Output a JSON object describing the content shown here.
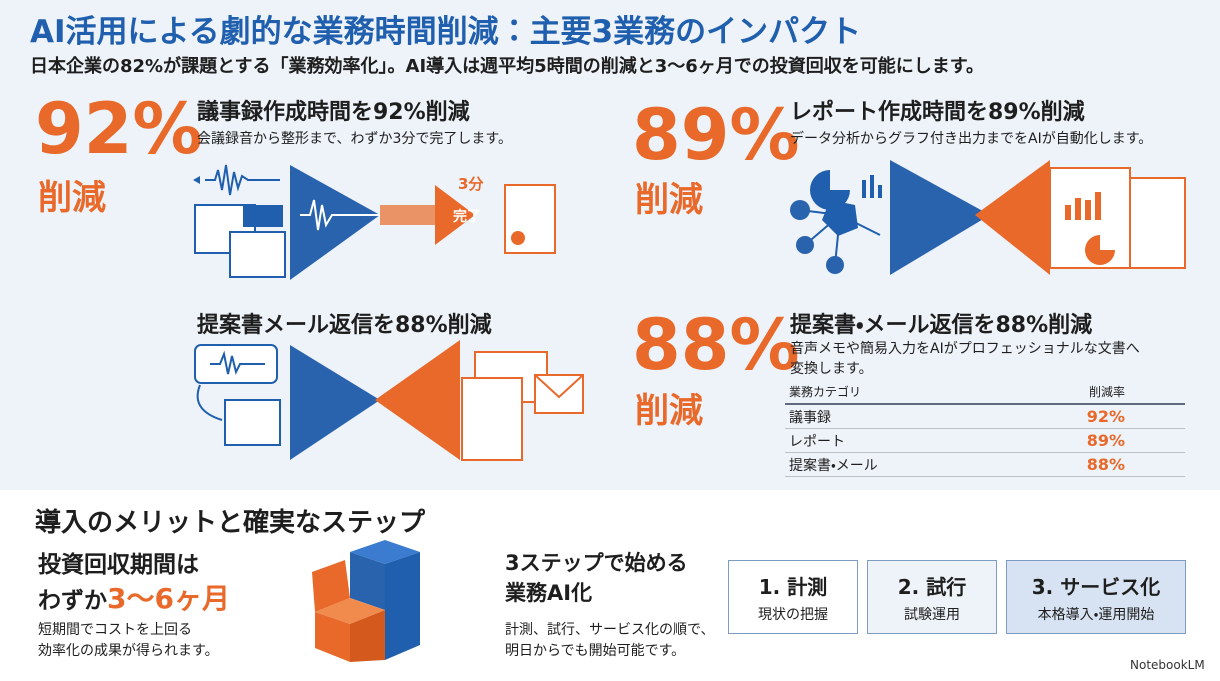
{
  "header": {
    "title": "AI活用による劇的な業務時間削減：主要3業務のインパクト",
    "subtitle": "日本企業の82%が課題とする「業務効率化」。AI導入は週平均5時間の削減と3〜6ヶ月での投資回収を可能にします。"
  },
  "cards": [
    {
      "big": "92%",
      "big_label": "削減",
      "title": "議事録作成時間を92%削減",
      "desc": [
        "会議録音から整形まで、わずか3分で完了します。"
      ],
      "tag_time": "3分",
      "tag_done": "完了"
    },
    {
      "big": "89%",
      "big_label": "削減",
      "title": "レポート作成時間を89%削減",
      "desc": [
        "データ分析からグラフ付き出力までをAIが自動化します。"
      ]
    },
    {
      "title": "提案書メール返信を88%削減"
    },
    {
      "big": "88%",
      "big_label": "削減",
      "title": "提案書・メール返信を88%削減",
      "desc": [
        "音声メモや簡易入力をAIがプロフェッショナルな文書へ",
        "変換します。"
      ],
      "table": {
        "header": [
          "業務カテゴリ",
          "削減率"
        ],
        "rows": [
          [
            "議事録",
            "92%"
          ],
          [
            "レポート",
            "89%"
          ],
          [
            "提案書・メール",
            "88%"
          ]
        ]
      }
    }
  ],
  "bottom": {
    "title": "導入のメリットと確実なステップ",
    "payback": {
      "heading": "投資回収期間は",
      "prefix": "わずか",
      "highlight": "3〜6ヶ月",
      "desc": [
        "短期間でコストを上回る",
        "効率化の成果が得られます。"
      ]
    },
    "steps": {
      "heading": [
        "3ステップで始める",
        "業務AI化"
      ],
      "desc": [
        "計測、試行、サービス化の順で、",
        "明日からでも開始可能です。"
      ],
      "items": [
        {
          "title": "1. 計測",
          "sub": "現状の把握"
        },
        {
          "title": "2. 試行",
          "sub": "試験運用"
        },
        {
          "title": "3. サービス化",
          "sub": "本格導入・運用開始"
        }
      ]
    }
  },
  "footer": {
    "brand": "NotebookLM"
  }
}
